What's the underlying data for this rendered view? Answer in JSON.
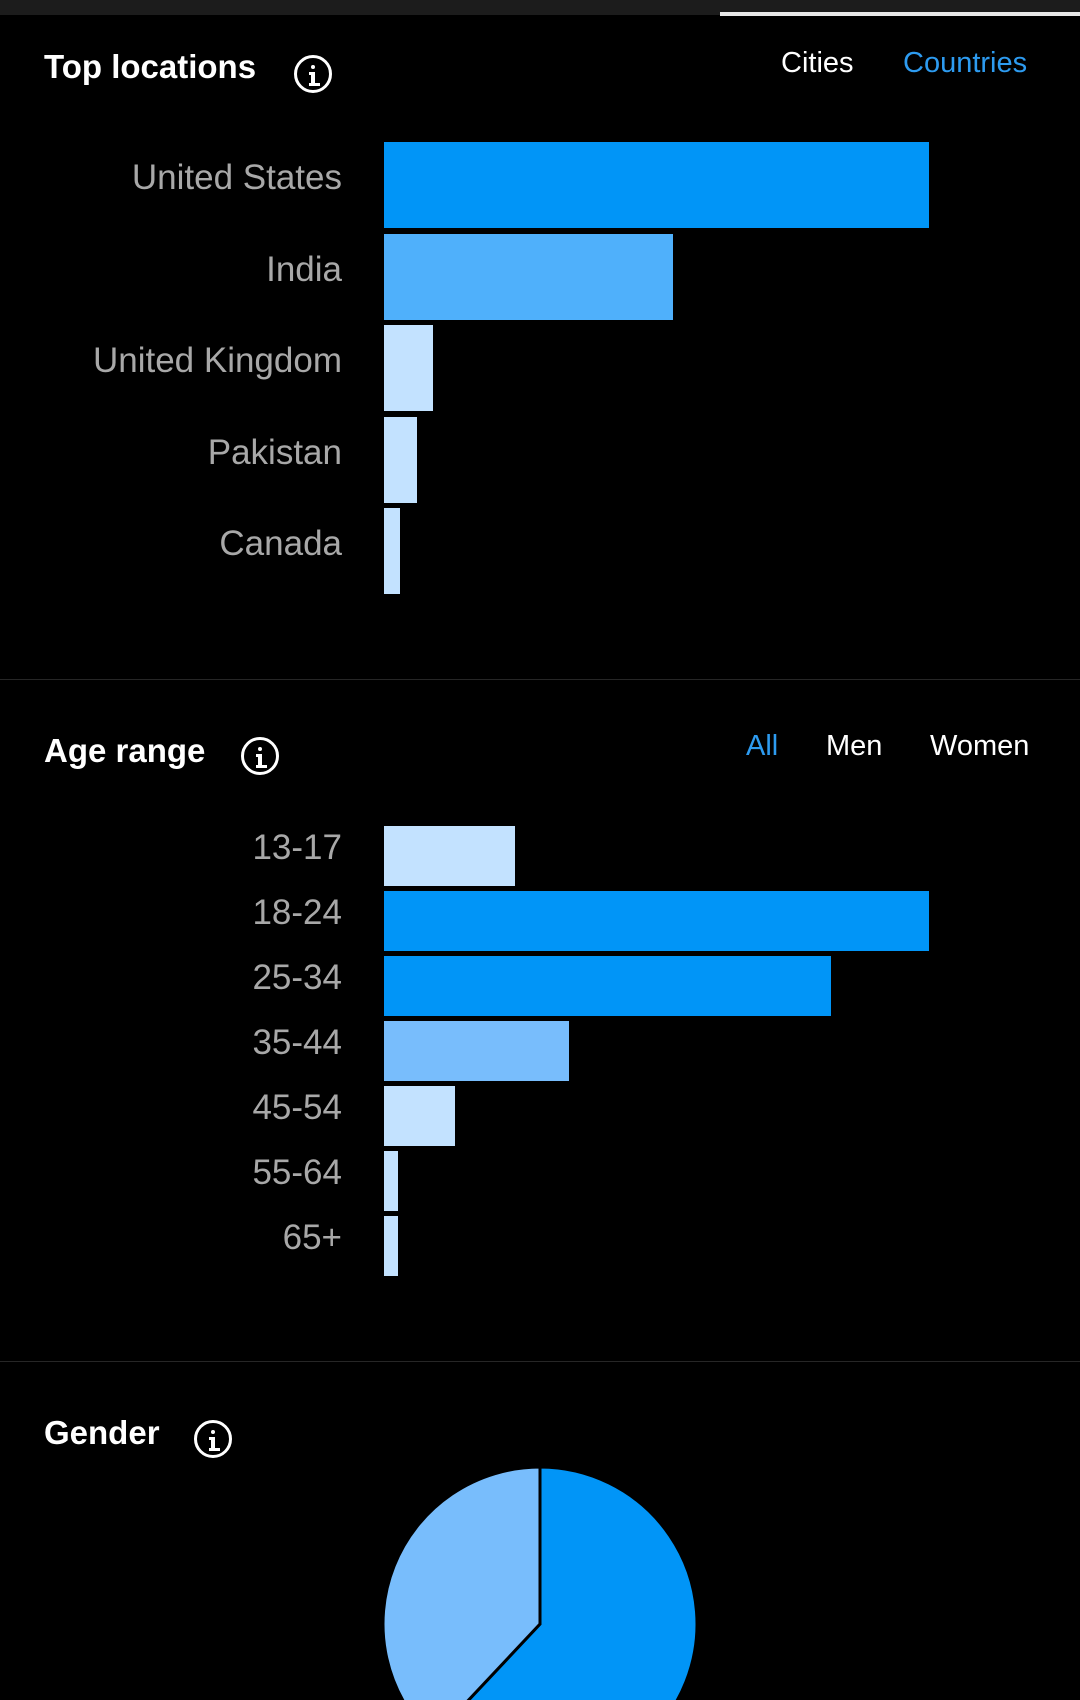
{
  "locations": {
    "title": "Top locations",
    "tabs": [
      {
        "label": "Cities",
        "active": false
      },
      {
        "label": "Countries",
        "active": true
      }
    ],
    "chart_data": {
      "type": "bar",
      "orientation": "horizontal",
      "categories": [
        "United States",
        "India",
        "United Kingdom",
        "Pakistan",
        "Canada"
      ],
      "values": [
        100,
        53,
        9,
        6,
        3
      ],
      "colors": [
        "#0195f7",
        "#4fb0fb",
        "#c3e2ff",
        "#c3e2ff",
        "#c3e2ff"
      ],
      "xlim": [
        0,
        100
      ]
    }
  },
  "age": {
    "title": "Age range",
    "tabs": [
      {
        "label": "All",
        "active": true
      },
      {
        "label": "Men",
        "active": false
      },
      {
        "label": "Women",
        "active": false
      }
    ],
    "chart_data": {
      "type": "bar",
      "orientation": "horizontal",
      "categories": [
        "13-17",
        "18-24",
        "25-34",
        "35-44",
        "45-54",
        "55-64",
        "65+"
      ],
      "values": [
        24,
        100,
        82,
        34,
        13,
        2.5,
        2.5
      ],
      "colors": [
        "#c3e2ff",
        "#0195f7",
        "#0195f7",
        "#78bdfc",
        "#c3e2ff",
        "#c3e2ff",
        "#c3e2ff"
      ],
      "xlim": [
        0,
        100
      ]
    }
  },
  "gender": {
    "title": "Gender",
    "chart_data": {
      "type": "pie",
      "values": [
        62,
        38
      ],
      "colors": [
        "#0195f7",
        "#78bdfc"
      ]
    }
  },
  "colors": {
    "background": "#000000",
    "accent": "#2d9bf0",
    "label": "#a8a8a8",
    "divider": "#262626"
  }
}
